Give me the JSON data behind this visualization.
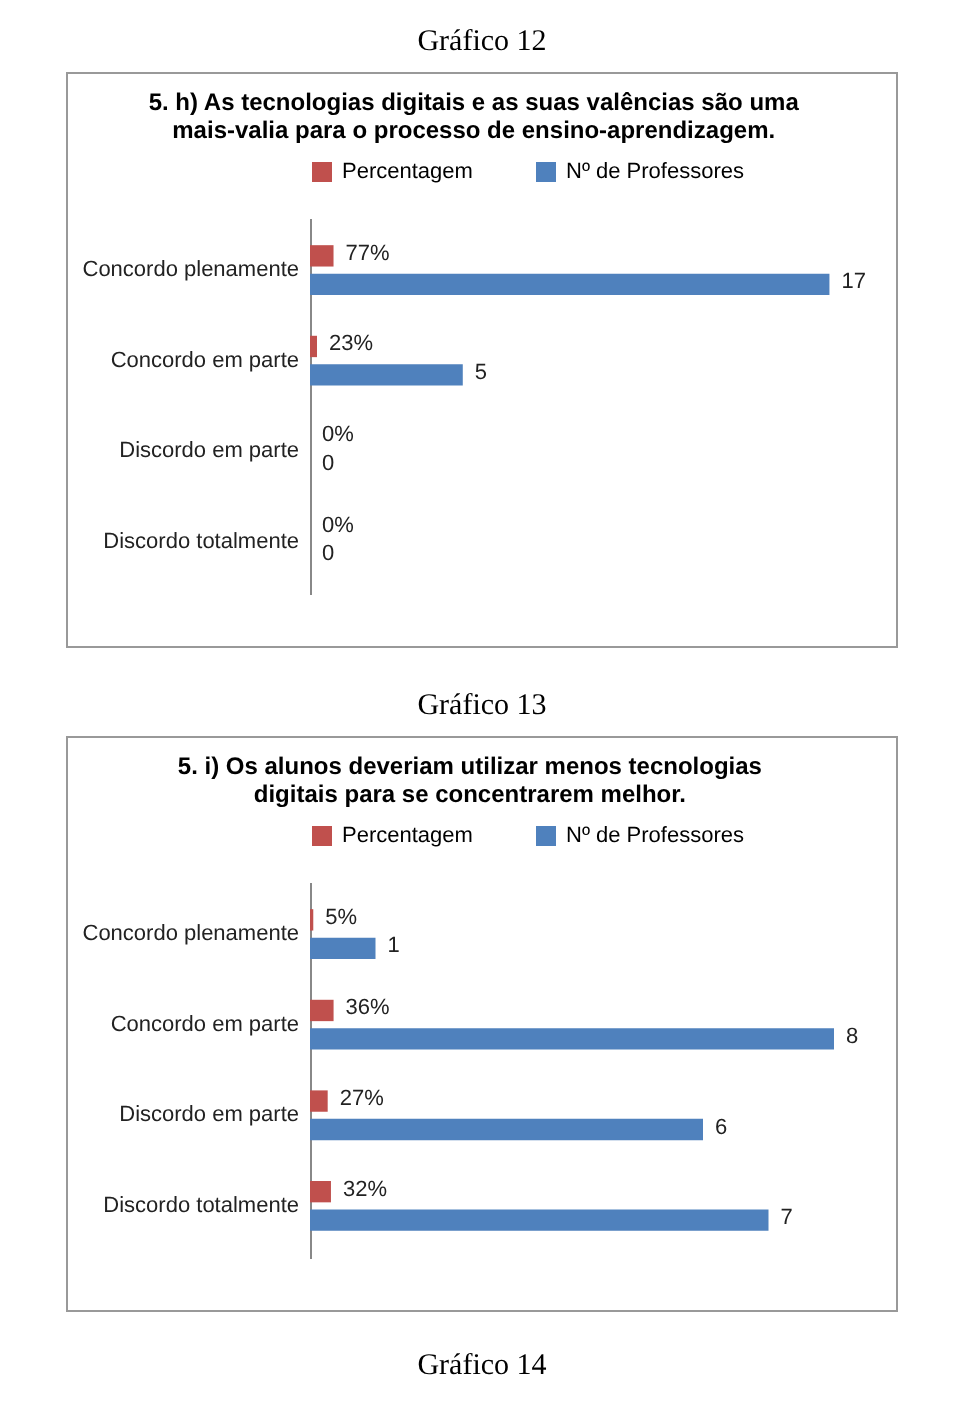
{
  "chart_data": [
    {
      "type": "bar",
      "orientation": "horizontal",
      "title": "5. h) As tecnologias digitais e as suas valências são uma mais-valia para o processo de ensino-aprendizagem.",
      "categories": [
        "Concordo plenamente",
        "Concordo em parte",
        "Discordo em parte",
        "Discordo totalmente"
      ],
      "legend": "top",
      "annotations": [
        "Gráfico 12"
      ],
      "series": [
        {
          "name": "Percentagem",
          "color": "#c0504d",
          "values": [
            0.77,
            0.23,
            0,
            0
          ],
          "value_labels": [
            "77%",
            "23%",
            "0%",
            "0%"
          ]
        },
        {
          "name": "Nº de Professores",
          "color": "#4f81bd",
          "values": [
            17,
            5,
            0,
            0
          ],
          "value_labels": [
            "17",
            "5",
            "0",
            "0"
          ]
        }
      ]
    },
    {
      "type": "bar",
      "orientation": "horizontal",
      "title": "5. i) Os alunos deveriam utilizar menos tecnologias digitais para se concentrarem melhor.",
      "categories": [
        "Concordo plenamente",
        "Concordo em parte",
        "Discordo em parte",
        "Discordo totalmente"
      ],
      "legend": "top",
      "annotations": [
        "Gráfico 13",
        "Gráfico 14"
      ],
      "series": [
        {
          "name": "Percentagem",
          "color": "#c0504d",
          "values": [
            0.05,
            0.36,
            0.27,
            0.32
          ],
          "value_labels": [
            "5%",
            "36%",
            "27%",
            "32%"
          ]
        },
        {
          "name": "Nº de Professores",
          "color": "#4f81bd",
          "values": [
            1,
            8,
            6,
            7
          ],
          "value_labels": [
            "1",
            "8",
            "6",
            "7"
          ]
        }
      ]
    }
  ]
}
